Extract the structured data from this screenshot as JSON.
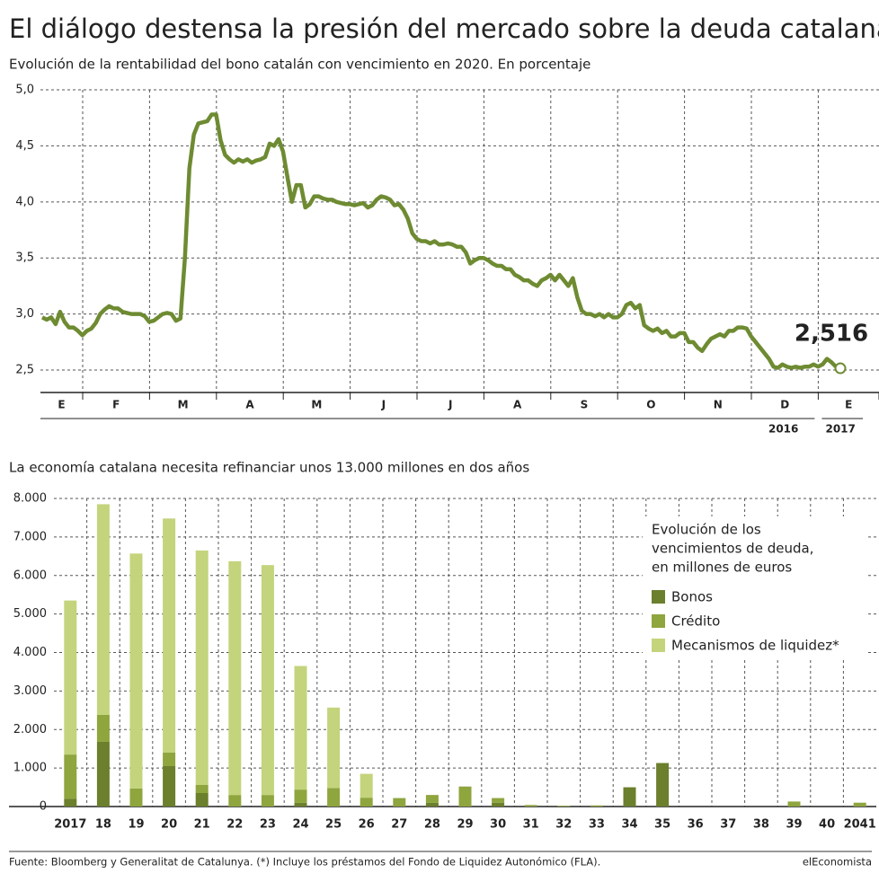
{
  "title": "El diálogo destensa la presión del mercado sobre la deuda catalana",
  "footer": {
    "source": "Fuente: Bloomberg y Generalitat de Catalunya. (*) Incluye los préstamos del Fondo de Liquidez Autonómico (FLA).",
    "brand": "elEconomista"
  },
  "chart_data": [
    {
      "type": "line",
      "title": "Evolución de la rentabilidad del bono catalán con vencimiento en 2020. En porcentaje",
      "x_tick_labels": [
        "E",
        "F",
        "M",
        "A",
        "M",
        "J",
        "J",
        "A",
        "S",
        "O",
        "N",
        "D",
        "E"
      ],
      "year_labels": [
        "2016",
        "2017"
      ],
      "color": "#6e8b32",
      "ylim": [
        2.3,
        5.0
      ],
      "yticks": [
        {
          "value": 2.5,
          "label": "2,5"
        },
        {
          "value": 3,
          "label": "3,0"
        },
        {
          "value": 3.5,
          "label": "3,5"
        },
        {
          "value": 4,
          "label": "4,0"
        },
        {
          "value": 4.5,
          "label": "4,5"
        },
        {
          "value": 5,
          "label": "5,0"
        }
      ],
      "grid": true,
      "annotation": "2,516",
      "values": [
        2.97,
        2.95,
        2.97,
        2.91,
        3.02,
        2.93,
        2.88,
        2.88,
        2.85,
        2.81,
        2.85,
        2.87,
        2.92,
        3.0,
        3.04,
        3.07,
        3.05,
        3.05,
        3.02,
        3.01,
        3.0,
        3.0,
        3.0,
        2.98,
        2.93,
        2.94,
        2.97,
        3.0,
        3.01,
        3.0,
        2.94,
        2.96,
        3.5,
        4.3,
        4.6,
        4.7,
        4.71,
        4.72,
        4.78,
        4.78,
        4.55,
        4.42,
        4.38,
        4.35,
        4.38,
        4.36,
        4.38,
        4.35,
        4.37,
        4.38,
        4.4,
        4.52,
        4.5,
        4.56,
        4.45,
        4.22,
        4.0,
        4.15,
        4.15,
        3.95,
        3.98,
        4.05,
        4.05,
        4.03,
        4.02,
        4.02,
        4.0,
        3.99,
        3.98,
        3.98,
        3.97,
        3.98,
        3.99,
        3.95,
        3.97,
        4.02,
        4.05,
        4.04,
        4.02,
        3.97,
        3.98,
        3.93,
        3.85,
        3.72,
        3.67,
        3.65,
        3.65,
        3.63,
        3.65,
        3.62,
        3.62,
        3.63,
        3.62,
        3.6,
        3.6,
        3.55,
        3.45,
        3.48,
        3.5,
        3.5,
        3.48,
        3.45,
        3.43,
        3.43,
        3.4,
        3.4,
        3.35,
        3.33,
        3.3,
        3.3,
        3.27,
        3.25,
        3.3,
        3.32,
        3.35,
        3.3,
        3.35,
        3.3,
        3.25,
        3.32,
        3.15,
        3.03,
        3.0,
        3.0,
        2.98,
        3.0,
        2.97,
        3.0,
        2.97,
        2.97,
        3.0,
        3.08,
        3.1,
        3.05,
        3.08,
        2.9,
        2.87,
        2.85,
        2.87,
        2.83,
        2.85,
        2.8,
        2.8,
        2.83,
        2.83,
        2.75,
        2.75,
        2.7,
        2.67,
        2.73,
        2.78,
        2.8,
        2.82,
        2.8,
        2.85,
        2.85,
        2.88,
        2.88,
        2.87,
        2.8,
        2.75,
        2.7,
        2.65,
        2.6,
        2.53,
        2.52,
        2.55,
        2.53,
        2.52,
        2.53,
        2.52,
        2.53,
        2.53,
        2.55,
        2.53,
        2.55,
        2.6,
        2.57,
        2.53,
        2.516
      ]
    },
    {
      "type": "stacked-bar",
      "title": "La economía catalana necesita refinanciar unos 13.000 millones en dos años",
      "categories": [
        "2017",
        "18",
        "19",
        "20",
        "21",
        "22",
        "23",
        "24",
        "25",
        "26",
        "27",
        "28",
        "29",
        "30",
        "31",
        "32",
        "33",
        "34",
        "35",
        "36",
        "37",
        "38",
        "39",
        "40",
        "2041"
      ],
      "ylim": [
        0,
        8000
      ],
      "yticks": [
        0,
        {
          "value": 1000,
          "label": "1.000"
        },
        {
          "value": 2000,
          "label": "2.000"
        },
        {
          "value": 3000,
          "label": "3.000"
        },
        {
          "value": 4000,
          "label": "4.000"
        },
        {
          "value": 5000,
          "label": "5.000"
        },
        {
          "value": 6000,
          "label": "6.000"
        },
        {
          "value": 7000,
          "label": "7.000"
        },
        {
          "value": 8000,
          "label": "8.000"
        }
      ],
      "grid": true,
      "legend_title": [
        "Evolución de los",
        "vencimientos de deuda,",
        "en millones de euros"
      ],
      "series": [
        {
          "name": "Bonos",
          "color": "#6b7f2c",
          "values": [
            200,
            1680,
            0,
            1050,
            350,
            0,
            0,
            100,
            0,
            0,
            0,
            100,
            0,
            100,
            0,
            0,
            0,
            500,
            1130,
            0,
            0,
            0,
            0,
            0,
            0
          ]
        },
        {
          "name": "Crédito",
          "color": "#8fa53e",
          "values": [
            1150,
            700,
            470,
            350,
            210,
            300,
            300,
            340,
            480,
            230,
            220,
            200,
            520,
            120,
            40,
            20,
            30,
            0,
            0,
            0,
            0,
            0,
            130,
            0,
            100
          ]
        },
        {
          "name": "Mecanismos de liquidez*",
          "color": "#c3d47c",
          "values": [
            4000,
            5470,
            6100,
            6080,
            6090,
            6070,
            5970,
            3210,
            2090,
            620,
            0,
            0,
            0,
            0,
            0,
            0,
            0,
            0,
            0,
            0,
            0,
            0,
            0,
            0,
            0
          ]
        }
      ]
    }
  ]
}
